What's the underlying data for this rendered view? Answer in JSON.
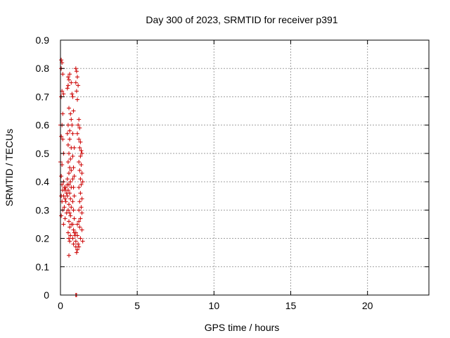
{
  "chart_data": {
    "type": "scatter",
    "title": "Day 300 of 2023, SRMTID for receiver p391",
    "xlabel": "GPS time / hours",
    "ylabel": "SRMTID / TECUs",
    "xlim": [
      0,
      24
    ],
    "ylim": [
      0,
      0.9
    ],
    "x_ticks": [
      0,
      5,
      10,
      15,
      20
    ],
    "x_tick_labels": [
      "0",
      "5",
      "10",
      "15",
      "20"
    ],
    "y_ticks": [
      0,
      0.1,
      0.2,
      0.3,
      0.4,
      0.5,
      0.6,
      0.7,
      0.8,
      0.9
    ],
    "y_tick_labels": [
      "0",
      "0.1",
      "0.2",
      "0.3",
      "0.4",
      "0.5",
      "0.6",
      "0.7",
      "0.8",
      "0.9"
    ],
    "grid": true,
    "marker": "+",
    "colors": {
      "points": "#cc0000",
      "grid": "#a0a0a0",
      "axis": "#000000"
    },
    "series": [
      {
        "name": "SRMTID",
        "points": [
          [
            0.05,
            0.83
          ],
          [
            0.1,
            0.82
          ],
          [
            0.05,
            0.8
          ],
          [
            0.15,
            0.78
          ],
          [
            0.1,
            0.72
          ],
          [
            0.2,
            0.71
          ],
          [
            0.05,
            0.7
          ],
          [
            0.15,
            0.64
          ],
          [
            0.0,
            0.6
          ],
          [
            0.1,
            0.6
          ],
          [
            0.05,
            0.56
          ],
          [
            0.15,
            0.55
          ],
          [
            0.2,
            0.5
          ],
          [
            0.0,
            0.47
          ],
          [
            0.1,
            0.46
          ],
          [
            0.05,
            0.42
          ],
          [
            0.2,
            0.4
          ],
          [
            0.1,
            0.39
          ],
          [
            0.25,
            0.38
          ],
          [
            0.15,
            0.37
          ],
          [
            0.3,
            0.37
          ],
          [
            0.05,
            0.35
          ],
          [
            0.2,
            0.35
          ],
          [
            0.1,
            0.33
          ],
          [
            0.25,
            0.31
          ],
          [
            0.15,
            0.3
          ],
          [
            0.05,
            0.28
          ],
          [
            0.3,
            0.27
          ],
          [
            0.2,
            0.25
          ],
          [
            0.35,
            0.38
          ],
          [
            0.4,
            0.36
          ],
          [
            0.3,
            0.34
          ],
          [
            0.45,
            0.39
          ],
          [
            0.35,
            0.33
          ],
          [
            0.4,
            0.29
          ],
          [
            0.5,
            0.77
          ],
          [
            0.55,
            0.76
          ],
          [
            0.6,
            0.78
          ],
          [
            0.5,
            0.74
          ],
          [
            0.7,
            0.75
          ],
          [
            0.45,
            0.73
          ],
          [
            0.55,
            0.66
          ],
          [
            0.65,
            0.64
          ],
          [
            0.7,
            0.62
          ],
          [
            0.5,
            0.6
          ],
          [
            0.6,
            0.58
          ],
          [
            0.75,
            0.6
          ],
          [
            0.45,
            0.57
          ],
          [
            0.6,
            0.55
          ],
          [
            0.5,
            0.53
          ],
          [
            0.7,
            0.52
          ],
          [
            0.55,
            0.5
          ],
          [
            0.65,
            0.48
          ],
          [
            0.5,
            0.47
          ],
          [
            0.6,
            0.45
          ],
          [
            0.7,
            0.44
          ],
          [
            0.55,
            0.43
          ],
          [
            0.45,
            0.41
          ],
          [
            0.65,
            0.4
          ],
          [
            0.55,
            0.39
          ],
          [
            0.7,
            0.38
          ],
          [
            0.5,
            0.37
          ],
          [
            0.6,
            0.36
          ],
          [
            0.45,
            0.35
          ],
          [
            0.65,
            0.34
          ],
          [
            0.55,
            0.32
          ],
          [
            0.7,
            0.31
          ],
          [
            0.5,
            0.3
          ],
          [
            0.6,
            0.29
          ],
          [
            0.65,
            0.28
          ],
          [
            0.55,
            0.26
          ],
          [
            0.7,
            0.25
          ],
          [
            0.6,
            0.24
          ],
          [
            0.5,
            0.22
          ],
          [
            0.65,
            0.21
          ],
          [
            0.55,
            0.2
          ],
          [
            0.6,
            0.19
          ],
          [
            0.55,
            0.14
          ],
          [
            0.75,
            0.71
          ],
          [
            0.8,
            0.7
          ],
          [
            0.85,
            0.65
          ],
          [
            0.8,
            0.57
          ],
          [
            0.9,
            0.52
          ],
          [
            0.8,
            0.49
          ],
          [
            0.85,
            0.45
          ],
          [
            0.9,
            0.42
          ],
          [
            0.8,
            0.41
          ],
          [
            0.85,
            0.38
          ],
          [
            0.9,
            0.35
          ],
          [
            0.8,
            0.33
          ],
          [
            0.85,
            0.3
          ],
          [
            0.9,
            0.27
          ],
          [
            0.8,
            0.25
          ],
          [
            0.85,
            0.23
          ],
          [
            0.9,
            0.22
          ],
          [
            0.8,
            0.2
          ],
          [
            0.85,
            0.18
          ],
          [
            0.95,
            0.21
          ],
          [
            1.0,
            0.8
          ],
          [
            1.05,
            0.79
          ],
          [
            1.1,
            0.77
          ],
          [
            1.0,
            0.75
          ],
          [
            1.15,
            0.74
          ],
          [
            1.05,
            0.72
          ],
          [
            1.1,
            0.69
          ],
          [
            1.2,
            0.62
          ],
          [
            1.15,
            0.6
          ],
          [
            1.25,
            0.59
          ],
          [
            1.1,
            0.57
          ],
          [
            1.2,
            0.55
          ],
          [
            1.3,
            0.54
          ],
          [
            1.25,
            0.52
          ],
          [
            1.35,
            0.51
          ],
          [
            1.4,
            0.5
          ],
          [
            1.3,
            0.49
          ],
          [
            1.2,
            0.47
          ],
          [
            1.35,
            0.46
          ],
          [
            1.25,
            0.44
          ],
          [
            1.4,
            0.43
          ],
          [
            1.3,
            0.41
          ],
          [
            1.45,
            0.4
          ],
          [
            1.35,
            0.39
          ],
          [
            1.2,
            0.38
          ],
          [
            1.3,
            0.36
          ],
          [
            1.4,
            0.34
          ],
          [
            1.25,
            0.33
          ],
          [
            1.35,
            0.31
          ],
          [
            1.2,
            0.3
          ],
          [
            1.4,
            0.29
          ],
          [
            1.3,
            0.27
          ],
          [
            1.2,
            0.26
          ],
          [
            1.1,
            0.25
          ],
          [
            1.25,
            0.24
          ],
          [
            1.4,
            0.23
          ],
          [
            1.0,
            0.22
          ],
          [
            1.1,
            0.21
          ],
          [
            1.3,
            0.2
          ],
          [
            1.0,
            0.19
          ],
          [
            1.15,
            0.18
          ],
          [
            1.45,
            0.19
          ],
          [
            1.0,
            0.17
          ],
          [
            1.1,
            0.16
          ],
          [
            1.2,
            0.17
          ],
          [
            1.05,
            0.15
          ],
          [
            1.0,
            0.0
          ],
          [
            1.05,
            0.0
          ]
        ]
      }
    ]
  }
}
